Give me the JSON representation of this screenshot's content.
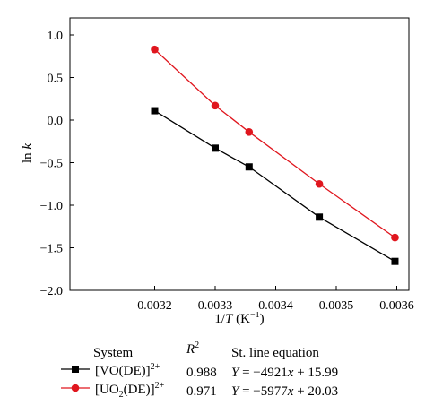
{
  "chart_data": {
    "type": "line",
    "xlabel_html": "1/<i>T</i> (K<sup>−1</sup>)",
    "ylabel_html": "ln <i>k</i>",
    "xlim": [
      0.00306,
      0.00362
    ],
    "ylim": [
      -2.0,
      1.2
    ],
    "xticks": [
      "0.0032",
      "0.0033",
      "0.0034",
      "0.0035",
      "0.0036"
    ],
    "yticks": [
      "1.0",
      "0.5",
      "0.0",
      "−0.5",
      "−1.0",
      "−1.5",
      "−2.0"
    ],
    "grid": false,
    "legend_position": "below",
    "series": [
      {
        "name_html": "[VO(DE)]<sup>2+</sup>",
        "r2": "0.988",
        "equation_html": "<i>Y</i> = −4921<i>x</i> + 15.99",
        "color": "#000000",
        "marker": "square",
        "x": [
          0.0032,
          0.0033,
          0.003356,
          0.003472,
          0.003597
        ],
        "y": [
          0.11,
          -0.33,
          -0.55,
          -1.14,
          -1.66
        ]
      },
      {
        "name_html": "[UO<sub>2</sub>(DE)]<sup>2+</sup>",
        "r2": "0.971",
        "equation_html": "<i>Y</i> = −5977<i>x</i> + 20.03",
        "color": "#e0161e",
        "marker": "circle",
        "x": [
          0.0032,
          0.0033,
          0.003356,
          0.003472,
          0.003597
        ],
        "y": [
          0.83,
          0.17,
          -0.14,
          -0.75,
          -1.38
        ]
      }
    ],
    "legend_headers": {
      "system": "System",
      "r2_html": "<i>R</i><sup>2</sup>",
      "equation": "St. line equation"
    }
  }
}
